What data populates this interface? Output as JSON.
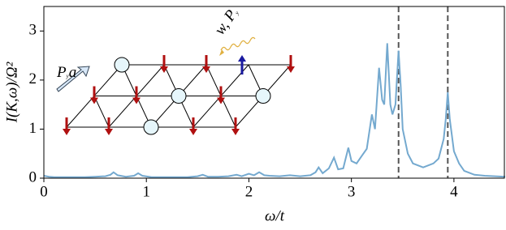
{
  "chart_data": {
    "type": "line",
    "xlabel": "ω/t",
    "ylabel": "I(K,ω)/Ω²",
    "x": [
      0,
      0.05,
      0.1,
      0.2,
      0.3,
      0.4,
      0.5,
      0.6,
      0.65,
      0.68,
      0.72,
      0.8,
      0.88,
      0.92,
      0.96,
      1.05,
      1.2,
      1.4,
      1.5,
      1.55,
      1.6,
      1.7,
      1.8,
      1.88,
      1.93,
      2.0,
      2.05,
      2.1,
      2.15,
      2.2,
      2.3,
      2.4,
      2.5,
      2.6,
      2.65,
      2.68,
      2.72,
      2.78,
      2.83,
      2.87,
      2.92,
      2.97,
      3.0,
      3.05,
      3.1,
      3.15,
      3.2,
      3.23,
      3.27,
      3.3,
      3.32,
      3.35,
      3.38,
      3.4,
      3.43,
      3.46,
      3.48,
      3.5,
      3.55,
      3.6,
      3.7,
      3.8,
      3.85,
      3.9,
      3.92,
      3.94,
      3.96,
      4.0,
      4.05,
      4.1,
      4.2,
      4.3,
      4.4,
      4.5
    ],
    "values": [
      0.05,
      0.03,
      0.02,
      0.02,
      0.02,
      0.02,
      0.03,
      0.04,
      0.07,
      0.12,
      0.06,
      0.03,
      0.05,
      0.1,
      0.05,
      0.02,
      0.02,
      0.02,
      0.04,
      0.07,
      0.03,
      0.03,
      0.04,
      0.07,
      0.04,
      0.09,
      0.06,
      0.12,
      0.06,
      0.05,
      0.04,
      0.06,
      0.04,
      0.06,
      0.12,
      0.22,
      0.1,
      0.2,
      0.42,
      0.18,
      0.2,
      0.62,
      0.35,
      0.3,
      0.45,
      0.6,
      1.3,
      1.0,
      2.25,
      1.6,
      1.5,
      2.75,
      1.5,
      1.3,
      1.5,
      2.6,
      1.9,
      1.0,
      0.5,
      0.3,
      0.22,
      0.3,
      0.4,
      0.8,
      1.2,
      1.75,
      1.2,
      0.55,
      0.3,
      0.15,
      0.07,
      0.05,
      0.04,
      0.03
    ],
    "color": "#74a9cf",
    "vlines": [
      3.46,
      3.94
    ],
    "vline_color": "#555555",
    "xlim": [
      0,
      4.5
    ],
    "xticks": [
      0,
      1,
      2,
      3,
      4
    ],
    "ylim": [
      0,
      3.5
    ],
    "yticks": [
      0,
      1,
      2,
      3
    ],
    "inset_labels": [
      {
        "base": "P",
        "sub": "y",
        "rest": "a"
      },
      {
        "base": "w, P",
        "sub": "y"
      }
    ]
  }
}
